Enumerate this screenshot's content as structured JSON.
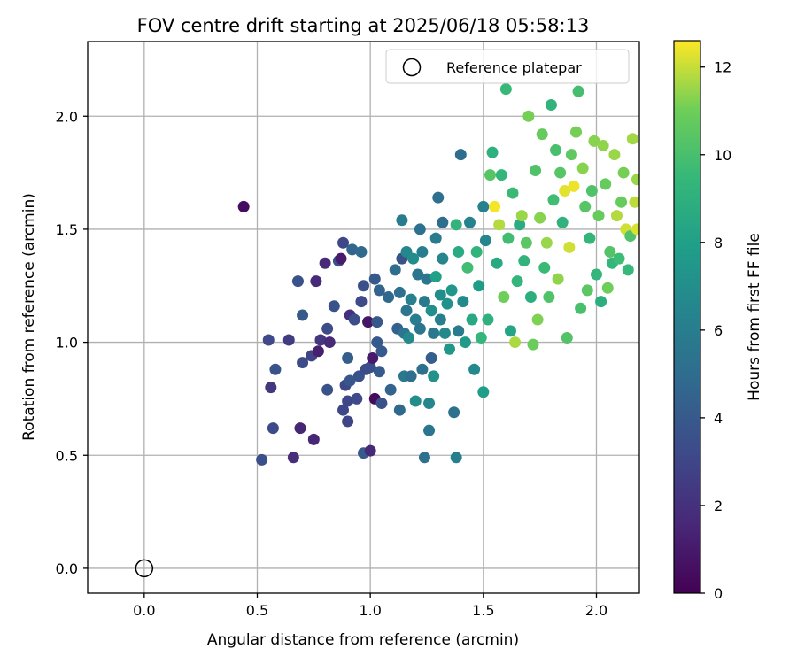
{
  "chart_data": {
    "type": "scatter",
    "title": "FOV centre drift starting at 2025/06/18 05:58:13",
    "xlabel": "Angular distance from reference (arcmin)",
    "ylabel": "Rotation from reference (arcmin)",
    "xlim": [
      -0.25,
      2.19
    ],
    "ylim": [
      -0.11,
      2.33
    ],
    "xticks": [
      "0.0",
      "0.5",
      "1.0",
      "1.5",
      "2.0"
    ],
    "yticks": [
      "0.0",
      "0.5",
      "1.0",
      "1.5",
      "2.0"
    ],
    "grid": true,
    "legend": {
      "position": "top-right",
      "entries": [
        "Reference platepar"
      ]
    },
    "reference_point": {
      "x": 0.0,
      "y": 0.0,
      "marker": "hollow-circle"
    },
    "colorbar": {
      "label": "Hours from first FF file",
      "colormap": "viridis",
      "range": [
        0,
        12.6
      ],
      "ticks": [
        "0",
        "2",
        "4",
        "6",
        "8",
        "10",
        "12"
      ]
    },
    "points": [
      [
        0.44,
        1.6,
        0.5
      ],
      [
        0.52,
        0.48,
        3.5
      ],
      [
        0.55,
        1.01,
        3.2
      ],
      [
        0.56,
        0.8,
        2.3
      ],
      [
        0.57,
        0.62,
        3.3
      ],
      [
        0.58,
        0.88,
        3.6
      ],
      [
        0.64,
        1.01,
        2.5
      ],
      [
        0.66,
        0.49,
        1.8
      ],
      [
        0.68,
        1.27,
        3.6
      ],
      [
        0.69,
        0.62,
        1.5
      ],
      [
        0.7,
        0.91,
        3.3
      ],
      [
        0.7,
        1.12,
        4.0
      ],
      [
        0.74,
        0.94,
        2.9
      ],
      [
        0.75,
        0.57,
        1.5
      ],
      [
        0.76,
        1.27,
        1.7
      ],
      [
        0.77,
        0.96,
        1.2
      ],
      [
        0.78,
        1.01,
        2.3
      ],
      [
        0.8,
        1.35,
        1.7
      ],
      [
        0.81,
        0.79,
        3.6
      ],
      [
        0.81,
        1.06,
        3.3
      ],
      [
        0.82,
        1.0,
        1.7
      ],
      [
        0.84,
        1.16,
        3.6
      ],
      [
        0.86,
        1.36,
        3.6
      ],
      [
        0.87,
        1.37,
        1.1
      ],
      [
        0.88,
        0.7,
        3.1
      ],
      [
        0.88,
        1.44,
        3.1
      ],
      [
        0.89,
        0.81,
        3.1
      ],
      [
        0.9,
        0.65,
        3.0
      ],
      [
        0.9,
        0.93,
        4.2
      ],
      [
        0.9,
        0.74,
        3.1
      ],
      [
        0.91,
        0.83,
        3.8
      ],
      [
        0.91,
        1.12,
        1.9
      ],
      [
        0.92,
        1.41,
        4.6
      ],
      [
        0.93,
        1.1,
        3.4
      ],
      [
        0.94,
        0.75,
        3.2
      ],
      [
        0.95,
        0.85,
        3.6
      ],
      [
        0.96,
        1.18,
        3.2
      ],
      [
        0.96,
        1.4,
        4.9
      ],
      [
        0.97,
        1.25,
        3.5
      ],
      [
        0.97,
        0.51,
        4.0
      ],
      [
        0.98,
        0.88,
        3.3
      ],
      [
        0.99,
        1.09,
        0.8
      ],
      [
        1.0,
        0.52,
        1.6
      ],
      [
        1.0,
        0.89,
        3.4
      ],
      [
        1.01,
        0.93,
        1.0
      ],
      [
        1.02,
        0.75,
        0.4
      ],
      [
        1.02,
        1.28,
        4.0
      ],
      [
        1.03,
        1.09,
        3.9
      ],
      [
        1.03,
        1.0,
        4.0
      ],
      [
        1.04,
        0.87,
        4.0
      ],
      [
        1.04,
        1.23,
        4.5
      ],
      [
        1.05,
        0.73,
        3.6
      ],
      [
        1.05,
        0.96,
        4.0
      ],
      [
        1.08,
        1.2,
        4.8
      ],
      [
        1.09,
        0.79,
        4.5
      ],
      [
        1.11,
        1.32,
        5.0
      ],
      [
        1.12,
        1.06,
        4.4
      ],
      [
        1.13,
        0.7,
        4.8
      ],
      [
        1.13,
        1.22,
        5.2
      ],
      [
        1.14,
        1.37,
        3.6
      ],
      [
        1.14,
        1.54,
        5.9
      ],
      [
        1.15,
        1.04,
        5.5
      ],
      [
        1.15,
        0.85,
        5.7
      ],
      [
        1.16,
        1.4,
        6.5
      ],
      [
        1.16,
        1.14,
        5.5
      ],
      [
        1.17,
        1.02,
        6.7
      ],
      [
        1.18,
        0.85,
        5.1
      ],
      [
        1.18,
        1.19,
        6.2
      ],
      [
        1.19,
        1.37,
        6.9
      ],
      [
        1.2,
        1.1,
        6.0
      ],
      [
        1.2,
        0.74,
        6.9
      ],
      [
        1.21,
        1.3,
        5.6
      ],
      [
        1.22,
        1.5,
        5.3
      ],
      [
        1.22,
        1.06,
        5.5
      ],
      [
        1.23,
        0.88,
        5.3
      ],
      [
        1.23,
        1.4,
        6.0
      ],
      [
        1.24,
        1.18,
        5.8
      ],
      [
        1.24,
        0.49,
        5.2
      ],
      [
        1.25,
        1.28,
        5.6
      ],
      [
        1.26,
        0.73,
        6.6
      ],
      [
        1.26,
        0.61,
        5.6
      ],
      [
        1.27,
        1.14,
        7.0
      ],
      [
        1.27,
        0.93,
        4.2
      ],
      [
        1.28,
        1.04,
        5.7
      ],
      [
        1.28,
        0.85,
        7.2
      ],
      [
        1.29,
        1.46,
        5.9
      ],
      [
        1.29,
        1.29,
        8.0
      ],
      [
        1.3,
        1.64,
        5.2
      ],
      [
        1.31,
        1.1,
        6.1
      ],
      [
        1.31,
        1.21,
        6.9
      ],
      [
        1.32,
        1.53,
        5.0
      ],
      [
        1.32,
        1.37,
        6.5
      ],
      [
        1.33,
        1.04,
        6.7
      ],
      [
        1.34,
        1.17,
        7.1
      ],
      [
        1.35,
        0.97,
        7.5
      ],
      [
        1.36,
        1.23,
        7.4
      ],
      [
        1.37,
        0.69,
        5.2
      ],
      [
        1.38,
        0.49,
        6.1
      ],
      [
        1.38,
        1.52,
        9.2
      ],
      [
        1.39,
        1.05,
        5.8
      ],
      [
        1.39,
        1.4,
        8.6
      ],
      [
        1.4,
        1.83,
        5.0
      ],
      [
        1.41,
        1.18,
        6.7
      ],
      [
        1.42,
        1.0,
        7.7
      ],
      [
        1.43,
        1.33,
        9.8
      ],
      [
        1.44,
        1.53,
        6.3
      ],
      [
        1.45,
        1.1,
        8.5
      ],
      [
        1.46,
        0.88,
        6.7
      ],
      [
        1.47,
        1.4,
        9.2
      ],
      [
        1.48,
        1.25,
        7.8
      ],
      [
        1.49,
        1.02,
        9.4
      ],
      [
        1.5,
        1.6,
        6.2
      ],
      [
        1.5,
        0.78,
        7.9
      ],
      [
        1.51,
        1.45,
        6.5
      ],
      [
        1.52,
        1.1,
        9.0
      ],
      [
        1.53,
        1.74,
        10.4
      ],
      [
        1.54,
        1.84,
        9.0
      ],
      [
        1.55,
        1.6,
        12.5
      ],
      [
        1.56,
        1.35,
        8.5
      ],
      [
        1.57,
        1.52,
        11.8
      ],
      [
        1.58,
        1.74,
        9.4
      ],
      [
        1.59,
        1.2,
        11.0
      ],
      [
        1.6,
        2.12,
        9.5
      ],
      [
        1.61,
        1.46,
        9.8
      ],
      [
        1.62,
        1.05,
        8.3
      ],
      [
        1.63,
        1.66,
        9.6
      ],
      [
        1.64,
        1.0,
        11.7
      ],
      [
        1.65,
        1.27,
        9.3
      ],
      [
        1.66,
        1.52,
        8.7
      ],
      [
        1.67,
        1.56,
        11.5
      ],
      [
        1.68,
        1.36,
        9.2
      ],
      [
        1.69,
        1.44,
        10.5
      ],
      [
        1.7,
        2.0,
        11.1
      ],
      [
        1.71,
        1.2,
        8.9
      ],
      [
        1.72,
        0.99,
        10.9
      ],
      [
        1.73,
        1.76,
        10.2
      ],
      [
        1.74,
        1.1,
        11.2
      ],
      [
        1.75,
        1.55,
        11.3
      ],
      [
        1.76,
        1.92,
        10.8
      ],
      [
        1.77,
        1.33,
        9.6
      ],
      [
        1.78,
        1.44,
        11.5
      ],
      [
        1.79,
        1.2,
        10.2
      ],
      [
        1.8,
        2.05,
        9.2
      ],
      [
        1.81,
        1.63,
        9.8
      ],
      [
        1.82,
        1.85,
        10.0
      ],
      [
        1.83,
        1.28,
        11.4
      ],
      [
        1.84,
        1.75,
        10.4
      ],
      [
        1.85,
        1.53,
        9.1
      ],
      [
        1.86,
        1.67,
        12.3
      ],
      [
        1.87,
        1.02,
        10.3
      ],
      [
        1.88,
        1.42,
        12.1
      ],
      [
        1.89,
        1.83,
        10.6
      ],
      [
        1.9,
        1.69,
        12.4
      ],
      [
        1.91,
        1.93,
        11.1
      ],
      [
        1.92,
        2.11,
        9.9
      ],
      [
        1.93,
        1.15,
        10.0
      ],
      [
        1.94,
        1.77,
        11.3
      ],
      [
        1.95,
        1.6,
        10.4
      ],
      [
        1.96,
        1.23,
        10.5
      ],
      [
        1.97,
        1.46,
        9.4
      ],
      [
        1.98,
        1.67,
        10.2
      ],
      [
        1.99,
        1.89,
        11.3
      ],
      [
        2.0,
        1.3,
        9.3
      ],
      [
        2.01,
        1.56,
        10.8
      ],
      [
        2.02,
        1.18,
        8.9
      ],
      [
        2.03,
        1.87,
        11.4
      ],
      [
        2.04,
        1.7,
        10.8
      ],
      [
        2.05,
        1.24,
        11.0
      ],
      [
        2.06,
        1.4,
        10.3
      ],
      [
        2.07,
        1.35,
        9.3
      ],
      [
        2.08,
        1.83,
        11.5
      ],
      [
        2.09,
        1.56,
        11.8
      ],
      [
        2.1,
        1.37,
        9.7
      ],
      [
        2.11,
        1.62,
        10.8
      ],
      [
        2.12,
        1.75,
        11.1
      ],
      [
        2.13,
        1.5,
        12.1
      ],
      [
        2.14,
        1.32,
        9.5
      ],
      [
        2.15,
        1.47,
        10.2
      ],
      [
        2.16,
        1.9,
        11.6
      ],
      [
        2.17,
        1.62,
        11.9
      ],
      [
        2.18,
        1.72,
        11.5
      ],
      [
        2.18,
        1.5,
        12.2
      ]
    ]
  }
}
